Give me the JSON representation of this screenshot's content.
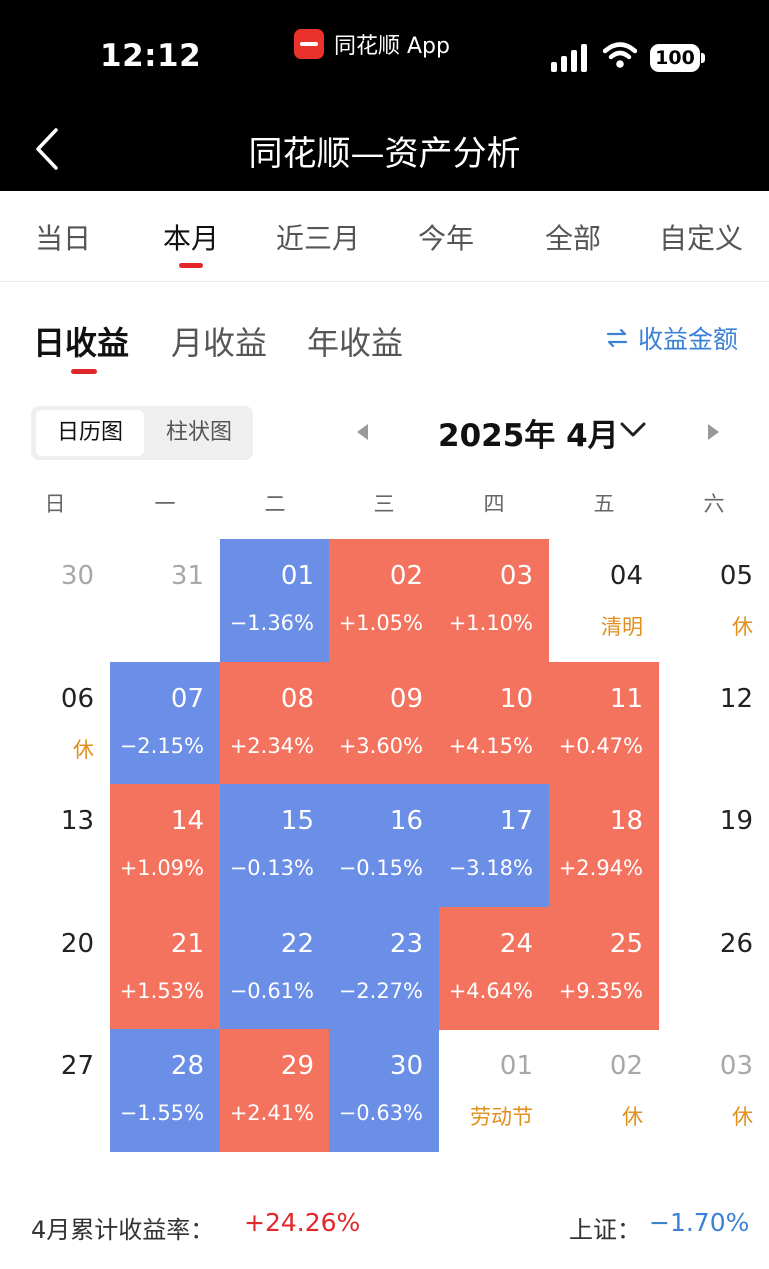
{
  "status_bar": {
    "time": "12:12",
    "app_name": "同花顺 App",
    "battery": "100"
  },
  "header": {
    "title": "同花顺—资产分析"
  },
  "period_tabs": [
    "当日",
    "本月",
    "近三月",
    "今年",
    "全部",
    "自定义"
  ],
  "period_active": "本月",
  "earnings_tabs": [
    "日收益",
    "月收益",
    "年收益"
  ],
  "earnings_active": "日收益",
  "amount_toggle_label": "收益金额",
  "view_toggle": {
    "calendar": "日历图",
    "bar": "柱状图",
    "active": "日历图"
  },
  "month_selector": {
    "label": "2025年 4月"
  },
  "weekdays": [
    "日",
    "一",
    "二",
    "三",
    "四",
    "五",
    "六"
  ],
  "colors": {
    "gain": "#f4735f",
    "loss": "#6b8ee6",
    "holiday": "#e0901c",
    "accent": "#e3262a",
    "link": "#3b82d6"
  },
  "calendar": [
    [
      {
        "day": "30",
        "kind": "muted"
      },
      {
        "day": "31",
        "kind": "muted"
      },
      {
        "day": "01",
        "value": "−1.36%",
        "kind": "neg"
      },
      {
        "day": "02",
        "value": "+1.05%",
        "kind": "pos"
      },
      {
        "day": "03",
        "value": "+1.10%",
        "kind": "pos"
      },
      {
        "day": "04",
        "note": "清明",
        "kind": "plain"
      },
      {
        "day": "05",
        "note": "休",
        "kind": "plain"
      }
    ],
    [
      {
        "day": "06",
        "note": "休",
        "kind": "plain"
      },
      {
        "day": "07",
        "value": "−2.15%",
        "kind": "neg"
      },
      {
        "day": "08",
        "value": "+2.34%",
        "kind": "pos"
      },
      {
        "day": "09",
        "value": "+3.60%",
        "kind": "pos"
      },
      {
        "day": "10",
        "value": "+4.15%",
        "kind": "pos"
      },
      {
        "day": "11",
        "value": "+0.47%",
        "kind": "pos"
      },
      {
        "day": "12",
        "kind": "plain"
      }
    ],
    [
      {
        "day": "13",
        "kind": "plain"
      },
      {
        "day": "14",
        "value": "+1.09%",
        "kind": "pos"
      },
      {
        "day": "15",
        "value": "−0.13%",
        "kind": "neg"
      },
      {
        "day": "16",
        "value": "−0.15%",
        "kind": "neg"
      },
      {
        "day": "17",
        "value": "−3.18%",
        "kind": "neg"
      },
      {
        "day": "18",
        "value": "+2.94%",
        "kind": "pos"
      },
      {
        "day": "19",
        "kind": "plain"
      }
    ],
    [
      {
        "day": "20",
        "kind": "plain"
      },
      {
        "day": "21",
        "value": "+1.53%",
        "kind": "pos"
      },
      {
        "day": "22",
        "value": "−0.61%",
        "kind": "neg"
      },
      {
        "day": "23",
        "value": "−2.27%",
        "kind": "neg"
      },
      {
        "day": "24",
        "value": "+4.64%",
        "kind": "pos"
      },
      {
        "day": "25",
        "value": "+9.35%",
        "kind": "pos"
      },
      {
        "day": "26",
        "kind": "plain"
      }
    ],
    [
      {
        "day": "27",
        "kind": "plain"
      },
      {
        "day": "28",
        "value": "−1.55%",
        "kind": "neg"
      },
      {
        "day": "29",
        "value": "+2.41%",
        "kind": "pos"
      },
      {
        "day": "30",
        "value": "−0.63%",
        "kind": "neg"
      },
      {
        "day": "01",
        "note": "劳动节",
        "kind": "muted"
      },
      {
        "day": "02",
        "note": "休",
        "kind": "muted"
      },
      {
        "day": "03",
        "note": "休",
        "kind": "muted"
      }
    ]
  ],
  "footer": {
    "cumulative_label": "4月累计收益率：",
    "cumulative_value": "+24.26%",
    "index_label": "上证：",
    "index_value": "−1.70%"
  }
}
